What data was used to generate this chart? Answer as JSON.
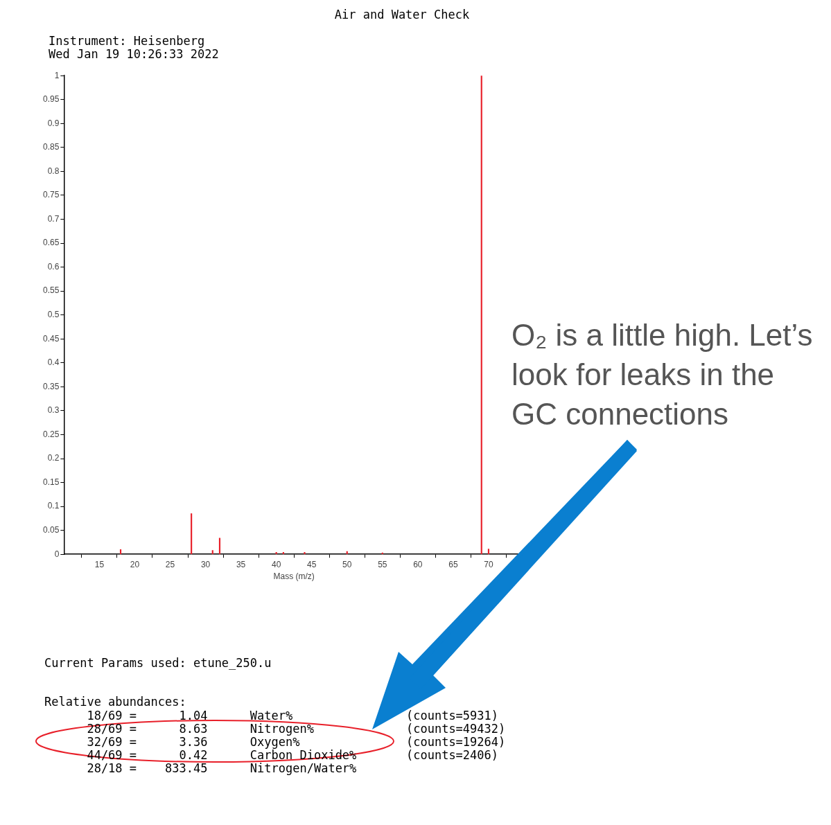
{
  "chart_data": {
    "type": "bar",
    "title": "Air and Water Check",
    "xlabel": "Mass (m/z)",
    "x": [
      18,
      28,
      31,
      32,
      40,
      41,
      44,
      50,
      55,
      69,
      70
    ],
    "series": [
      {
        "color": "#e8202a",
        "values": [
          0.01,
          0.085,
          0.008,
          0.034,
          0.004,
          0.004,
          0.004,
          0.006,
          0.003,
          1,
          0.011
        ]
      }
    ],
    "xlim": [
      10,
      75
    ],
    "xticks": [
      15,
      20,
      25,
      30,
      35,
      40,
      45,
      50,
      55,
      60,
      65,
      70
    ],
    "ylim": [
      0,
      1
    ],
    "yticks": [
      0,
      0.05,
      0.1,
      0.15,
      0.2,
      0.25,
      0.3,
      0.35,
      0.4,
      0.45,
      0.5,
      0.55,
      0.6,
      0.65,
      0.7,
      0.75,
      0.8,
      0.85,
      0.9,
      0.95,
      1
    ],
    "grid": false,
    "legend": false,
    "annotations": [
      "Instrument: Heisenberg",
      "Wed Jan 19 10:26:33 2022",
      "Current Params used: etune_250.u",
      "Relative abundances:",
      "      18/69 =      1.04      Water%                (counts=5931)",
      "      28/69 =      8.63      Nitrogen%             (counts=49432)",
      "      32/69 =      3.36      Oxygen%               (counts=19264)",
      "      44/69 =      0.42      Carbon Dioxide%       (counts=2406)",
      "      28/18 =    833.45      Nitrogen/Water%",
      "O₂ is a little high. Let’s look for leaks in the GC connections"
    ]
  }
}
